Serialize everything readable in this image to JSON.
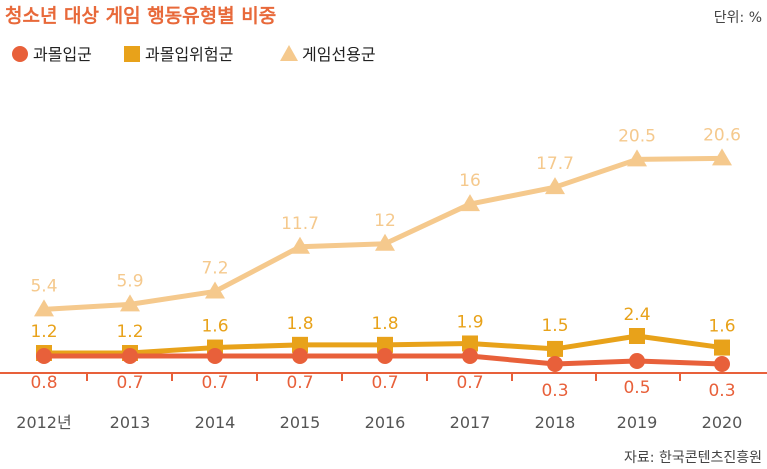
{
  "title": "청소년 대상 게임 행동유형별 비중",
  "unit_label": "단위: %",
  "source": "자료: 한국콘텐츠진흥원",
  "colors": {
    "title": "#e8693a",
    "high_risk": "#e8603a",
    "at_risk": "#e8a21a",
    "selective": "#f5c98d",
    "axis": "#e8603a"
  },
  "chart_data": {
    "type": "line",
    "categories": [
      "2012년",
      "2013",
      "2014",
      "2015",
      "2016",
      "2017",
      "2018",
      "2019",
      "2020"
    ],
    "series": [
      {
        "name": "과몰입군",
        "marker": "circle",
        "values": [
          0.8,
          0.7,
          0.7,
          0.7,
          0.7,
          0.7,
          0.3,
          0.5,
          0.3
        ],
        "labels": [
          "0.8",
          "0.7",
          "0.7",
          "0.7",
          "0.7",
          "0.7",
          "0.3",
          "0.5",
          "0.3"
        ]
      },
      {
        "name": "과몰입위험군",
        "marker": "square",
        "values": [
          1.2,
          1.2,
          1.6,
          1.8,
          1.8,
          1.9,
          1.5,
          2.4,
          1.6
        ],
        "labels": [
          "1.2",
          "1.2",
          "1.6",
          "1.8",
          "1.8",
          "1.9",
          "1.5",
          "2.4",
          "1.6"
        ]
      },
      {
        "name": "게임선용군",
        "marker": "triangle",
        "values": [
          5.4,
          5.9,
          7.2,
          11.7,
          12,
          16,
          17.7,
          20.5,
          20.6
        ],
        "labels": [
          "5.4",
          "5.9",
          "7.2",
          "11.7",
          "12",
          "16",
          "17.7",
          "20.5",
          "20.6"
        ]
      }
    ],
    "legend_position": "top-left",
    "grid": false
  }
}
